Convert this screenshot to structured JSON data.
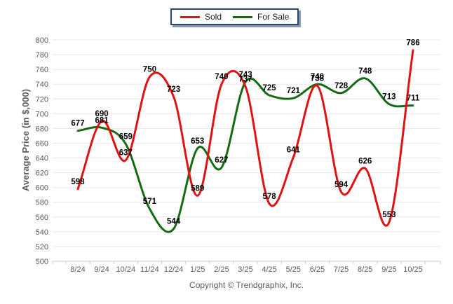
{
  "chart_data": {
    "type": "line",
    "x": [
      "8/24",
      "9/24",
      "10/24",
      "11/24",
      "12/24",
      "1/25",
      "2/25",
      "3/25",
      "4/25",
      "5/25",
      "6/25",
      "7/25",
      "8/25",
      "9/25",
      "10/25"
    ],
    "series": [
      {
        "name": "Sold",
        "color": "#e01212",
        "values": [
          598,
          690,
          637,
          750,
          723,
          589,
          740,
          737,
          578,
          641,
          738,
          594,
          626,
          553,
          786
        ]
      },
      {
        "name": "For Sale",
        "color": "#146b14",
        "values": [
          677,
          681,
          659,
          571,
          544,
          653,
          627,
          743,
          725,
          721,
          740,
          728,
          748,
          713,
          711
        ]
      }
    ],
    "title": "",
    "xlabel": "",
    "ylabel": "Average Price (in $,000)",
    "ylim": [
      500,
      800
    ],
    "ytick_step": 20,
    "grid": "horizontal",
    "legend_position": "top-center",
    "line_style": "smooth",
    "data_labels": true
  },
  "footer": {
    "copyright": "Copyright © Trendgraphix, Inc."
  },
  "style": {
    "grid_color": "#e7e7e7",
    "axis_color": "#c8c8c8",
    "tick_label_color": "#5e5c58",
    "data_label_color": "#000000",
    "legend_border_color": "#2b4775",
    "legend_shadow_color": "#8a96aa",
    "background": "#ffffff"
  }
}
